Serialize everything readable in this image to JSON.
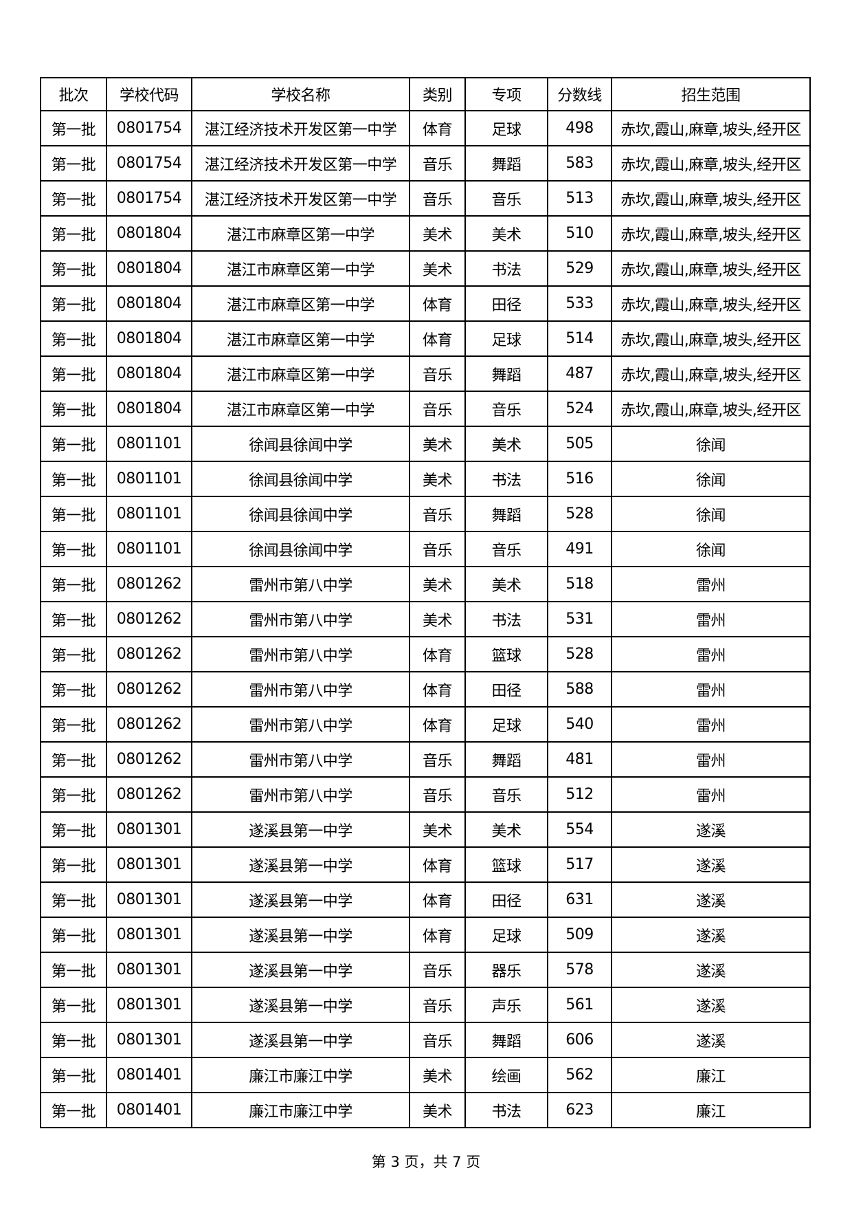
{
  "headers": [
    "批次",
    "学校代码",
    "学校名称",
    "类别",
    "专项",
    "分数线",
    "招生范围"
  ],
  "rows": [
    [
      "第一批",
      "0801754",
      "湛江经济技术开发区第一中学",
      "体育",
      "足球",
      "498",
      "赤坎,霞山,麻章,坡头,经开区"
    ],
    [
      "第一批",
      "0801754",
      "湛江经济技术开发区第一中学",
      "音乐",
      "舞蹈",
      "583",
      "赤坎,霞山,麻章,坡头,经开区"
    ],
    [
      "第一批",
      "0801754",
      "湛江经济技术开发区第一中学",
      "音乐",
      "音乐",
      "513",
      "赤坎,霞山,麻章,坡头,经开区"
    ],
    [
      "第一批",
      "0801804",
      "湛江市麻章区第一中学",
      "美术",
      "美术",
      "510",
      "赤坎,霞山,麻章,坡头,经开区"
    ],
    [
      "第一批",
      "0801804",
      "湛江市麻章区第一中学",
      "美术",
      "书法",
      "529",
      "赤坎,霞山,麻章,坡头,经开区"
    ],
    [
      "第一批",
      "0801804",
      "湛江市麻章区第一中学",
      "体育",
      "田径",
      "533",
      "赤坎,霞山,麻章,坡头,经开区"
    ],
    [
      "第一批",
      "0801804",
      "湛江市麻章区第一中学",
      "体育",
      "足球",
      "514",
      "赤坎,霞山,麻章,坡头,经开区"
    ],
    [
      "第一批",
      "0801804",
      "湛江市麻章区第一中学",
      "音乐",
      "舞蹈",
      "487",
      "赤坎,霞山,麻章,坡头,经开区"
    ],
    [
      "第一批",
      "0801804",
      "湛江市麻章区第一中学",
      "音乐",
      "音乐",
      "524",
      "赤坎,霞山,麻章,坡头,经开区"
    ],
    [
      "第一批",
      "0801101",
      "徐闻县徐闻中学",
      "美术",
      "美术",
      "505",
      "徐闻"
    ],
    [
      "第一批",
      "0801101",
      "徐闻县徐闻中学",
      "美术",
      "书法",
      "516",
      "徐闻"
    ],
    [
      "第一批",
      "0801101",
      "徐闻县徐闻中学",
      "音乐",
      "舞蹈",
      "528",
      "徐闻"
    ],
    [
      "第一批",
      "0801101",
      "徐闻县徐闻中学",
      "音乐",
      "音乐",
      "491",
      "徐闻"
    ],
    [
      "第一批",
      "0801262",
      "雷州市第八中学",
      "美术",
      "美术",
      "518",
      "雷州"
    ],
    [
      "第一批",
      "0801262",
      "雷州市第八中学",
      "美术",
      "书法",
      "531",
      "雷州"
    ],
    [
      "第一批",
      "0801262",
      "雷州市第八中学",
      "体育",
      "篮球",
      "528",
      "雷州"
    ],
    [
      "第一批",
      "0801262",
      "雷州市第八中学",
      "体育",
      "田径",
      "588",
      "雷州"
    ],
    [
      "第一批",
      "0801262",
      "雷州市第八中学",
      "体育",
      "足球",
      "540",
      "雷州"
    ],
    [
      "第一批",
      "0801262",
      "雷州市第八中学",
      "音乐",
      "舞蹈",
      "481",
      "雷州"
    ],
    [
      "第一批",
      "0801262",
      "雷州市第八中学",
      "音乐",
      "音乐",
      "512",
      "雷州"
    ],
    [
      "第一批",
      "0801301",
      "遂溪县第一中学",
      "美术",
      "美术",
      "554",
      "遂溪"
    ],
    [
      "第一批",
      "0801301",
      "遂溪县第一中学",
      "体育",
      "篮球",
      "517",
      "遂溪"
    ],
    [
      "第一批",
      "0801301",
      "遂溪县第一中学",
      "体育",
      "田径",
      "631",
      "遂溪"
    ],
    [
      "第一批",
      "0801301",
      "遂溪县第一中学",
      "体育",
      "足球",
      "509",
      "遂溪"
    ],
    [
      "第一批",
      "0801301",
      "遂溪县第一中学",
      "音乐",
      "器乐",
      "578",
      "遂溪"
    ],
    [
      "第一批",
      "0801301",
      "遂溪县第一中学",
      "音乐",
      "声乐",
      "561",
      "遂溪"
    ],
    [
      "第一批",
      "0801301",
      "遂溪县第一中学",
      "音乐",
      "舞蹈",
      "606",
      "遂溪"
    ],
    [
      "第一批",
      "0801401",
      "廉江市廉江中学",
      "美术",
      "绘画",
      "562",
      "廉江"
    ],
    [
      "第一批",
      "0801401",
      "廉江市廉江中学",
      "美术",
      "书法",
      "623",
      "廉江"
    ]
  ],
  "footer": "第 3 页，共 7 页"
}
